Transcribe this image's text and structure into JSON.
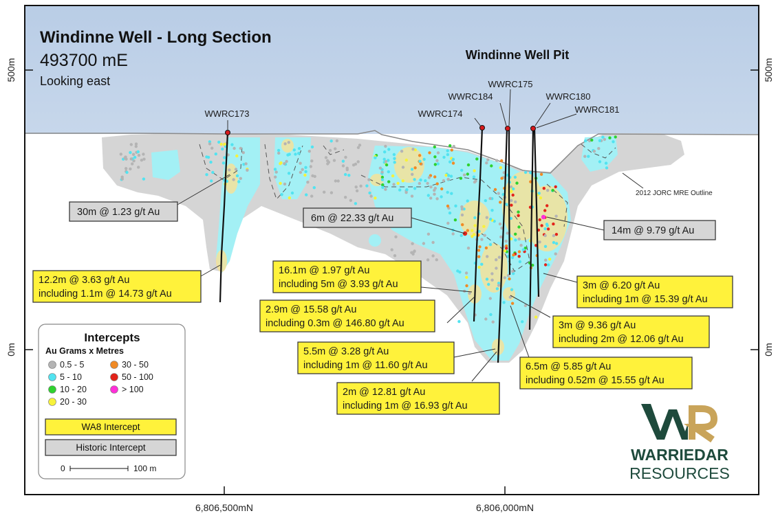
{
  "title": "Windinne Well - Long Section",
  "easting": "493700 mE",
  "looking": "Looking east",
  "pit_label": "Windinne Well Pit",
  "elevation_labels": {
    "top": "500m",
    "bottom": "0m"
  },
  "northing_labels": [
    "6,806,500mN",
    "6,806,000mN"
  ],
  "outline_label": "2012 JORC MRE Outline",
  "drillholes": [
    "WWRC173",
    "WWRC174",
    "WWRC184",
    "WWRC175",
    "WWRC180",
    "WWRC181"
  ],
  "callouts": {
    "c1": {
      "line1": "30m @ 1.23 g/t Au"
    },
    "c2": {
      "line1": "6m @ 22.33 g/t Au"
    },
    "c3": {
      "line1": "14m @ 9.79 g/t Au"
    },
    "c4": {
      "line1": "12.2m @ 3.63 g/t Au",
      "line2": "including 1.1m @ 14.73 g/t Au"
    },
    "c5": {
      "line1": "16.1m @ 1.97 g/t Au",
      "line2": "including 5m @ 3.93 g/t Au"
    },
    "c6": {
      "line1": "2.9m @ 15.58 g/t Au",
      "line2": "including 0.3m @ 146.80 g/t Au"
    },
    "c7": {
      "line1": "5.5m @ 3.28 g/t Au",
      "line2": "including 1m @ 11.60 g/t Au"
    },
    "c8": {
      "line1": "2m @ 12.81 g/t Au",
      "line2": "including 1m @ 16.93 g/t Au"
    },
    "c9": {
      "line1": "3m @ 6.20 g/t Au",
      "line2": "including 1m @ 15.39 g/t Au"
    },
    "c10": {
      "line1": "3m @ 9.36 g/t Au",
      "line2": "including 2m @ 12.06 g/t Au"
    },
    "c11": {
      "line1": "6.5m @ 5.85 g/t Au",
      "line2": "including 0.52m @ 15.55 g/t Au"
    }
  },
  "legend": {
    "title": "Intercepts",
    "subtitle": "Au Grams x Metres",
    "items": [
      {
        "label": "0.5 - 5",
        "color": "#b4b4b4"
      },
      {
        "label": "5 - 10",
        "color": "#52e3f0"
      },
      {
        "label": "10 - 20",
        "color": "#2fd12f"
      },
      {
        "label": "20 - 30",
        "color": "#f7f23a"
      },
      {
        "label": "30 - 50",
        "color": "#f08a25"
      },
      {
        "label": "50 - 100",
        "color": "#e2231a"
      },
      {
        "label": "> 100",
        "color": "#ff2fd8"
      }
    ],
    "wa8": "WA8 Intercept",
    "historic": "Historic Intercept",
    "scale_start": "0",
    "scale_end": "100 m"
  },
  "logo": {
    "line1": "WARRIEDAR",
    "line2": "RESOURCES",
    "color": "#1e4a3c",
    "accent": "#c9a45a"
  }
}
